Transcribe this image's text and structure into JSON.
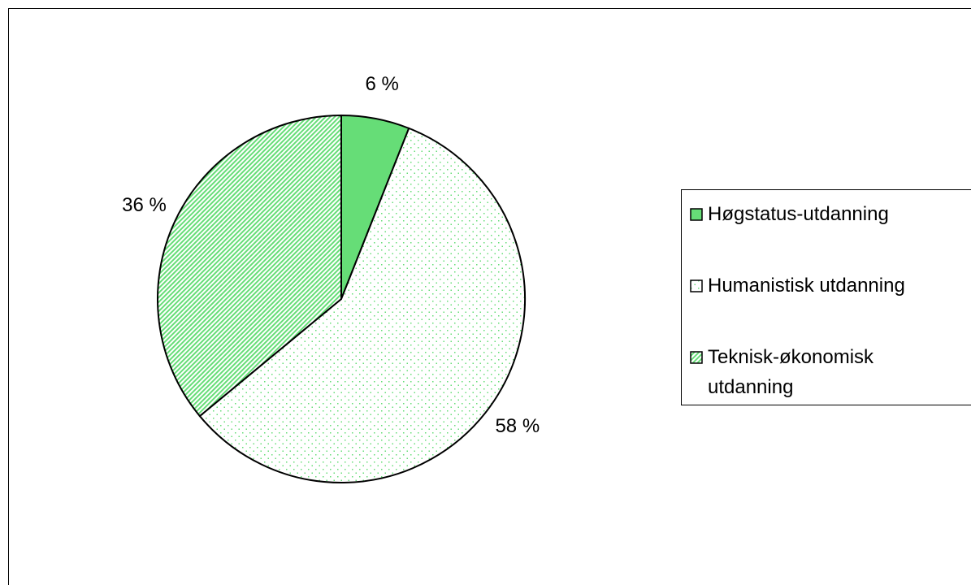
{
  "chart_data": {
    "type": "pie",
    "categories": [
      "Høgstatus-utdanning",
      "Humanistisk utdanning",
      "Teknisk-økonomisk utdanning"
    ],
    "values": [
      6,
      58,
      36
    ],
    "value_labels": [
      "6 %",
      "58 %",
      "36 %"
    ],
    "colors": [
      "#66dd77",
      "#66dd77",
      "#66dd77"
    ],
    "patterns": [
      "solid",
      "dotted",
      "diagonal"
    ],
    "legend": "right"
  }
}
